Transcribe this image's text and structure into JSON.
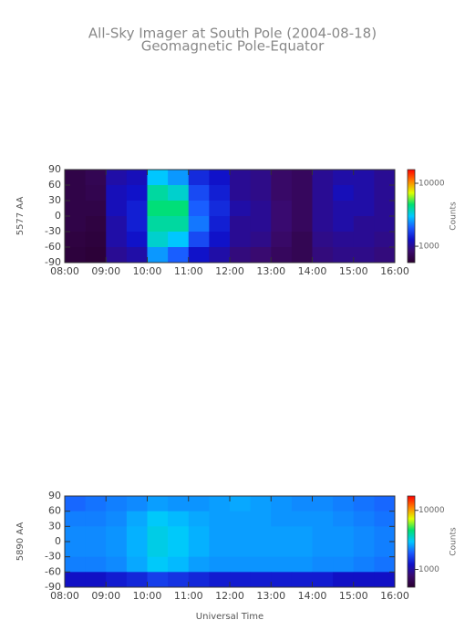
{
  "chart_data": [
    {
      "type": "heatmap",
      "title": "All-Sky Imager at South Pole (2004-08-18)",
      "subtitle": "Geomagnetic Pole-Equator",
      "ylabel": "5577 AA",
      "colorbar_label": "Counts",
      "colormap": [
        "#2a0030",
        "#3a0a6e",
        "#1010c8",
        "#1a5aff",
        "#00c8ff",
        "#00e070",
        "#e0ff00",
        "#ff8000",
        "#ff0000"
      ],
      "clim": [
        550,
        16500
      ],
      "colorbar_ticks": [
        1000,
        10000
      ],
      "xlim": [
        8,
        16
      ],
      "xticks": [
        {
          "value": 8,
          "label": "08:00"
        },
        {
          "value": 9,
          "label": "09:00"
        },
        {
          "value": 10,
          "label": "10:00"
        },
        {
          "value": 11,
          "label": "11:00"
        },
        {
          "value": 12,
          "label": "12:00"
        },
        {
          "value": 13,
          "label": "13:00"
        },
        {
          "value": 14,
          "label": "14:00"
        },
        {
          "value": 15,
          "label": "15:00"
        },
        {
          "value": 16,
          "label": "16:00"
        }
      ],
      "ylim": [
        -90,
        90
      ],
      "yticks": [
        90,
        60,
        30,
        0,
        -30,
        -60,
        -90
      ],
      "x": [
        8.25,
        8.75,
        9.25,
        9.75,
        10.25,
        10.75,
        11.25,
        11.75,
        12.25,
        12.75,
        13.25,
        13.75,
        14.25,
        14.75,
        15.25,
        15.75
      ],
      "y": [
        75,
        45,
        15,
        -15,
        -45,
        -75
      ],
      "z": [
        [
          650,
          700,
          1100,
          1200,
          3000,
          2500,
          1500,
          1300,
          1000,
          950,
          800,
          750,
          1000,
          1100,
          1100,
          1000
        ],
        [
          650,
          680,
          1200,
          1300,
          4000,
          3500,
          1800,
          1400,
          1000,
          950,
          800,
          750,
          1000,
          1200,
          1100,
          1000
        ],
        [
          650,
          650,
          1200,
          1400,
          4500,
          4500,
          2000,
          1500,
          1100,
          1000,
          850,
          750,
          1000,
          1100,
          1100,
          1000
        ],
        [
          650,
          620,
          1100,
          1400,
          4000,
          4000,
          2200,
          1400,
          1000,
          1000,
          850,
          750,
          1000,
          1100,
          1000,
          1000
        ],
        [
          620,
          600,
          1100,
          1300,
          3500,
          3000,
          1800,
          1300,
          1000,
          950,
          800,
          700,
          950,
          1000,
          1000,
          950
        ],
        [
          600,
          580,
          1000,
          1100,
          2500,
          2000,
          1300,
          1100,
          900,
          850,
          750,
          700,
          900,
          950,
          950,
          900
        ]
      ]
    },
    {
      "type": "heatmap",
      "ylabel": "5890 AA",
      "xlabel": "Universal Time",
      "colorbar_label": "Counts",
      "colormap": [
        "#2a0030",
        "#3a0a6e",
        "#1010c8",
        "#1a5aff",
        "#00c8ff",
        "#00e070",
        "#e0ff00",
        "#ff8000",
        "#ff0000"
      ],
      "clim": [
        500,
        17500
      ],
      "colorbar_ticks": [
        1000,
        10000
      ],
      "xlim": [
        8,
        16
      ],
      "xticks": [
        {
          "value": 8,
          "label": "08:00"
        },
        {
          "value": 9,
          "label": "09:00"
        },
        {
          "value": 10,
          "label": "10:00"
        },
        {
          "value": 11,
          "label": "11:00"
        },
        {
          "value": 12,
          "label": "12:00"
        },
        {
          "value": 13,
          "label": "13:00"
        },
        {
          "value": 14,
          "label": "14:00"
        },
        {
          "value": 15,
          "label": "15:00"
        },
        {
          "value": 16,
          "label": "16:00"
        }
      ],
      "ylim": [
        -90,
        90
      ],
      "yticks": [
        90,
        60,
        30,
        0,
        -30,
        -60,
        -90
      ],
      "x": [
        8.25,
        8.75,
        9.25,
        9.75,
        10.25,
        10.75,
        11.25,
        11.75,
        12.25,
        12.75,
        13.25,
        13.75,
        14.25,
        14.75,
        15.25,
        15.75
      ],
      "y": [
        75,
        45,
        15,
        -15,
        -45,
        -75
      ],
      "z": [
        [
          2000,
          2100,
          2200,
          2300,
          2500,
          2400,
          2400,
          2500,
          2600,
          2500,
          2400,
          2300,
          2300,
          2200,
          2100,
          2000
        ],
        [
          2200,
          2200,
          2300,
          2600,
          3000,
          2800,
          2600,
          2500,
          2500,
          2500,
          2400,
          2400,
          2400,
          2300,
          2200,
          2100
        ],
        [
          2300,
          2300,
          2400,
          2700,
          3200,
          3000,
          2700,
          2500,
          2500,
          2500,
          2500,
          2500,
          2400,
          2400,
          2300,
          2200
        ],
        [
          2300,
          2300,
          2400,
          2700,
          3200,
          3000,
          2700,
          2500,
          2500,
          2500,
          2500,
          2500,
          2400,
          2400,
          2300,
          2200
        ],
        [
          2200,
          2200,
          2300,
          2600,
          3000,
          2800,
          2500,
          2400,
          2400,
          2400,
          2400,
          2400,
          2300,
          2300,
          2200,
          2100
        ],
        [
          1200,
          1200,
          1300,
          1400,
          1600,
          1500,
          1400,
          1300,
          1300,
          1300,
          1300,
          1300,
          1300,
          1200,
          1200,
          1200
        ]
      ]
    }
  ]
}
